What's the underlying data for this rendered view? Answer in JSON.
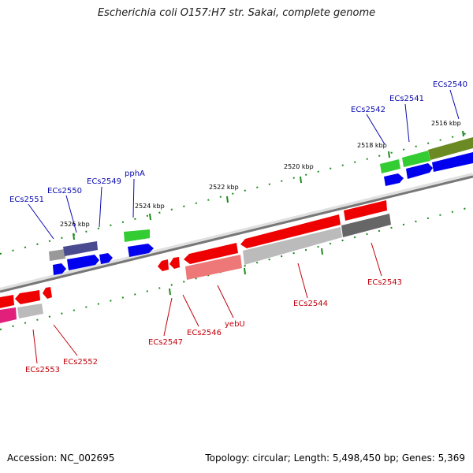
{
  "title": "Escherichia coli O157:H7 str. Sakai, complete genome",
  "footer": {
    "accession": "Accession: NC_002695",
    "summary": "Topology: circular; Length: 5,498,450 bp; Genes: 5,369"
  },
  "ticks": [
    "2516 kbp",
    "2518 kbp",
    "2520 kbp",
    "2522 kbp",
    "2524 kbp",
    "2526 kbp"
  ],
  "forward_labels": [
    "ECs2540",
    "ECs2541",
    "ECs2542",
    "pphA",
    "ECs2549",
    "ECs2550",
    "ECs2551"
  ],
  "reverse_labels": [
    "ECs2543",
    "ECs2544",
    "yebU",
    "ECs2546",
    "ECs2547",
    "ECs2552",
    "ECs2553"
  ],
  "colors": {
    "forward_cds": "#0000ee",
    "forward_gene": "#33cc33",
    "reverse_cds": "#ee0000",
    "backbone": "#808080",
    "tick_marks": "#1a8a1a",
    "forward_label": "#0a0ab0",
    "reverse_label": "#c0000a"
  }
}
